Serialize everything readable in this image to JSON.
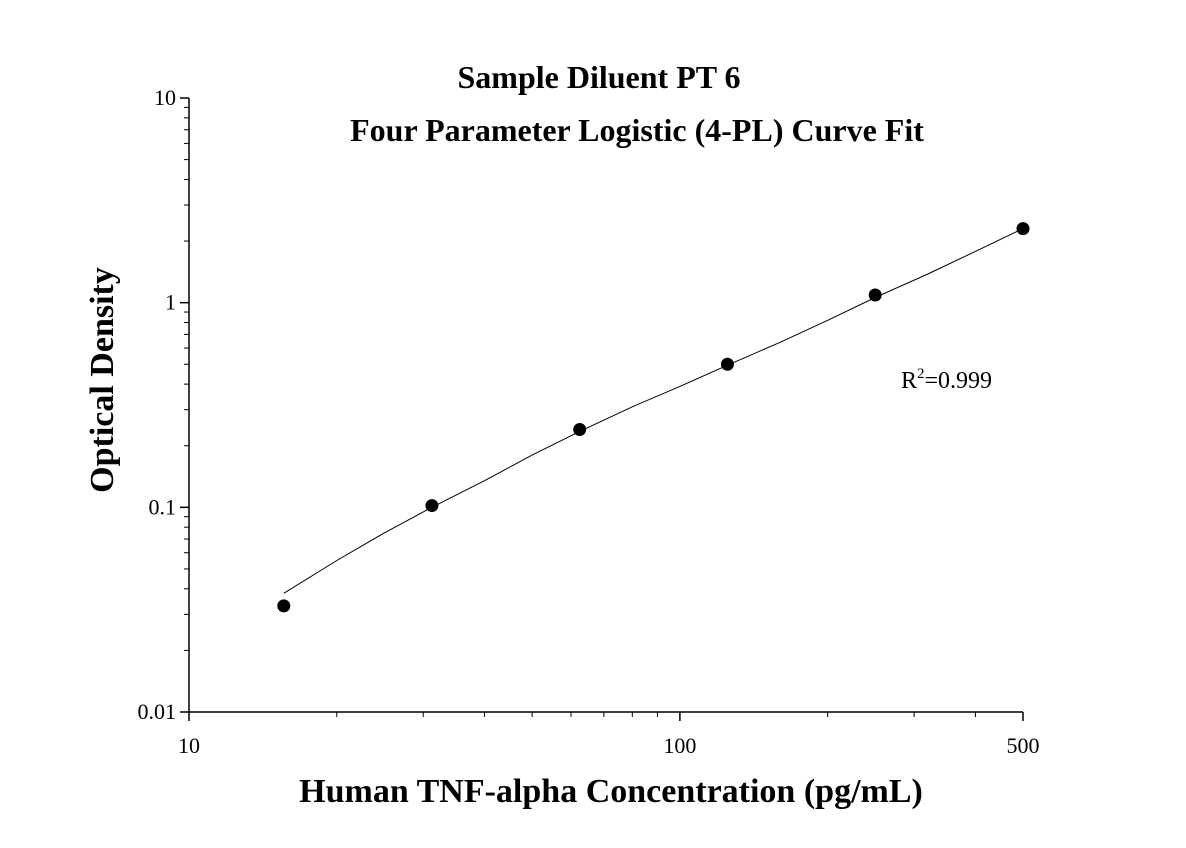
{
  "chart_data": {
    "type": "scatter",
    "title": "Sample Diluent PT 6",
    "subtitle": "Four Parameter Logistic (4-PL) Curve Fit",
    "xlabel": "Human TNF-alpha Concentration (pg/mL)",
    "ylabel": "Optical Density",
    "x_scale": "log",
    "y_scale": "log",
    "xlim": [
      10,
      500
    ],
    "ylim": [
      0.01,
      10
    ],
    "x_tick_labels": [
      "10",
      "100",
      "500"
    ],
    "y_tick_labels": [
      "0.01",
      "0.1",
      "1",
      "10"
    ],
    "grid": false,
    "annotation": {
      "r_label": "R",
      "r_sup": "2",
      "r_value": "=0.999"
    },
    "series": [
      {
        "x": [
          15.6,
          31.25,
          62.5,
          125,
          250,
          500
        ],
        "y": [
          0.033,
          0.102,
          0.24,
          0.5,
          1.09,
          2.3
        ]
      }
    ],
    "fit_curve": {
      "x": [
        15.6,
        20,
        25,
        31.25,
        40,
        50,
        62.5,
        80,
        100,
        125,
        160,
        200,
        250,
        320,
        400,
        500
      ],
      "y": [
        0.038,
        0.055,
        0.075,
        0.1,
        0.135,
        0.18,
        0.235,
        0.31,
        0.39,
        0.495,
        0.64,
        0.82,
        1.06,
        1.38,
        1.78,
        2.3
      ]
    },
    "colors": {
      "markers": "#000000",
      "line": "#000000",
      "axes": "#000000"
    }
  }
}
